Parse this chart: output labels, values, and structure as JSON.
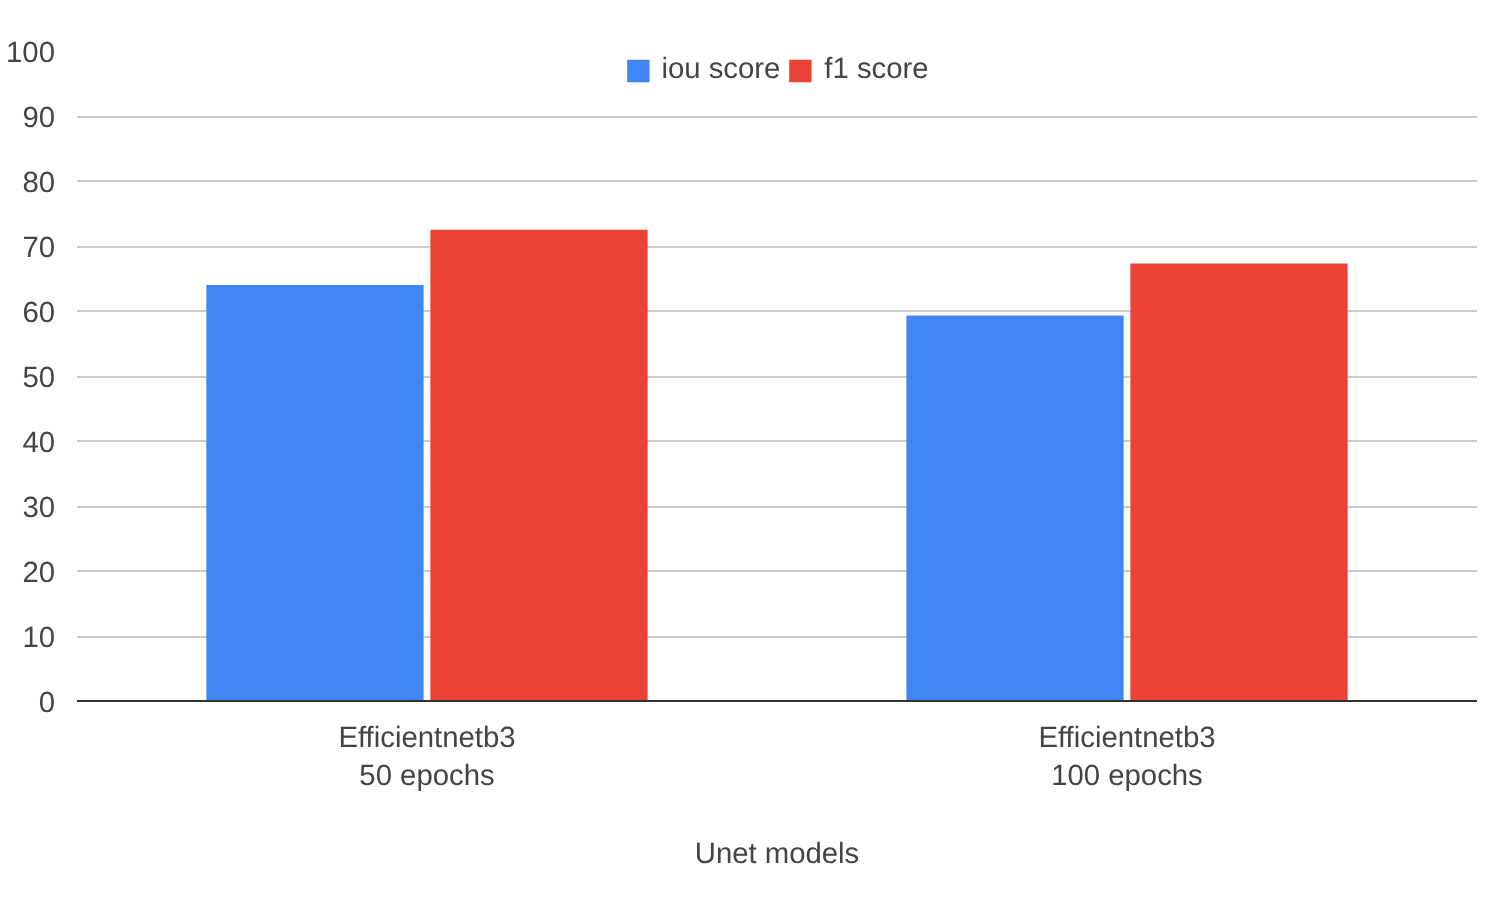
{
  "chart_data": {
    "type": "bar",
    "xlabel": "Unet models",
    "categories": [
      "Efficientnetb3\n50 epochs",
      "Efficientnetb3\n100 epochs"
    ],
    "series": [
      {
        "name": "iou score",
        "color": "#4285f4",
        "values": [
          64,
          59.3
        ]
      },
      {
        "name": "f1 score",
        "color": "#ea4335",
        "values": [
          72.5,
          67.3
        ]
      }
    ],
    "ylim": [
      0,
      100
    ],
    "yticks": [
      0,
      10,
      20,
      30,
      40,
      50,
      60,
      70,
      80,
      90,
      100
    ],
    "grid": "y",
    "legend": "top"
  }
}
